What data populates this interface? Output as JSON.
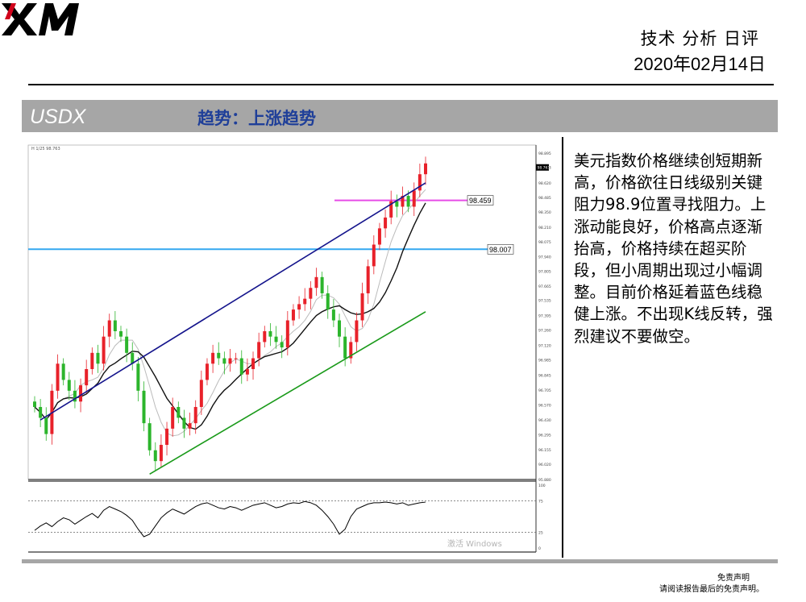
{
  "header": {
    "logo_text": "XM",
    "title": "技术 分析 日评",
    "date": "2020年02月14日"
  },
  "banner": {
    "symbol": "USDX",
    "trend": "趋势：上涨趋势"
  },
  "analysis": {
    "text": "美元指数价格继续创短期新高，价格欲往日线级别关键阻力98.9位置寻找阻力。上涨动能良好，价格高点逐渐抬高，价格持续在超买阶段，但小周期出现过小幅调整。目前价格延着蓝色线稳健上涨。不出现K线反转，强烈建议不要做空。"
  },
  "footer": {
    "disclaimer_title": "免责声明",
    "disclaimer_text": "请阅读报告最后的免责声明。"
  },
  "chart_data": {
    "type": "candlestick",
    "instrument": "USDX",
    "top_left_label": "H 1/25 98.763",
    "price_axis_ticks": [
      98.895,
      98.763,
      98.62,
      98.485,
      98.35,
      98.21,
      98.075,
      97.94,
      97.805,
      97.665,
      97.535,
      97.395,
      97.26,
      97.12,
      96.985,
      96.845,
      96.705,
      96.57,
      96.43,
      96.295,
      96.155,
      96.02,
      95.88
    ],
    "current_price": "98.763",
    "ylim": [
      95.88,
      98.895
    ],
    "close": [
      96.55,
      96.45,
      96.3,
      96.7,
      96.95,
      96.8,
      96.7,
      96.6,
      96.75,
      96.9,
      97.05,
      96.95,
      97.2,
      97.35,
      97.25,
      97.2,
      97.05,
      96.95,
      96.7,
      96.4,
      96.15,
      96.05,
      96.2,
      96.35,
      96.55,
      96.45,
      96.35,
      96.4,
      96.55,
      96.8,
      96.95,
      97.05,
      97.0,
      96.95,
      97.0,
      97.0,
      96.85,
      96.9,
      97.0,
      97.15,
      97.25,
      97.2,
      97.15,
      97.1,
      97.35,
      97.45,
      97.5,
      97.55,
      97.65,
      97.75,
      97.6,
      97.45,
      97.35,
      97.2,
      97.0,
      97.15,
      97.35,
      97.6,
      97.85,
      98.05,
      98.2,
      98.3,
      98.45,
      98.4,
      98.5,
      98.4,
      98.55,
      98.7,
      98.8
    ],
    "horizontal_levels": [
      {
        "value": 98.459,
        "label": "98.459",
        "color": "#e64ce6"
      },
      {
        "value": 98.007,
        "label": "98.007",
        "color": "#34a8f0"
      }
    ],
    "trendlines": [
      {
        "name": "blue channel",
        "color": "#14148c",
        "from": [
          1,
          96.43
        ],
        "to": [
          68,
          98.62
        ]
      },
      {
        "name": "green channel",
        "color": "#1a9a1a",
        "from": [
          20,
          95.93
        ],
        "to": [
          68,
          97.43
        ]
      }
    ],
    "indicator": {
      "axis_ticks": [
        100,
        75,
        25,
        0
      ],
      "levels": [
        75,
        25
      ],
      "values": [
        28,
        35,
        40,
        34,
        42,
        48,
        45,
        38,
        44,
        50,
        55,
        48,
        60,
        66,
        62,
        58,
        52,
        44,
        30,
        18,
        22,
        35,
        48,
        56,
        62,
        58,
        54,
        60,
        66,
        70,
        72,
        68,
        64,
        62,
        66,
        64,
        60,
        64,
        68,
        70,
        72,
        68,
        64,
        66,
        70,
        72,
        71,
        74,
        72,
        68,
        60,
        50,
        38,
        22,
        30,
        50,
        62,
        66,
        70,
        72,
        72,
        73,
        72,
        70,
        72,
        68,
        70,
        72,
        73
      ]
    },
    "watermark": "激活 Windows"
  }
}
